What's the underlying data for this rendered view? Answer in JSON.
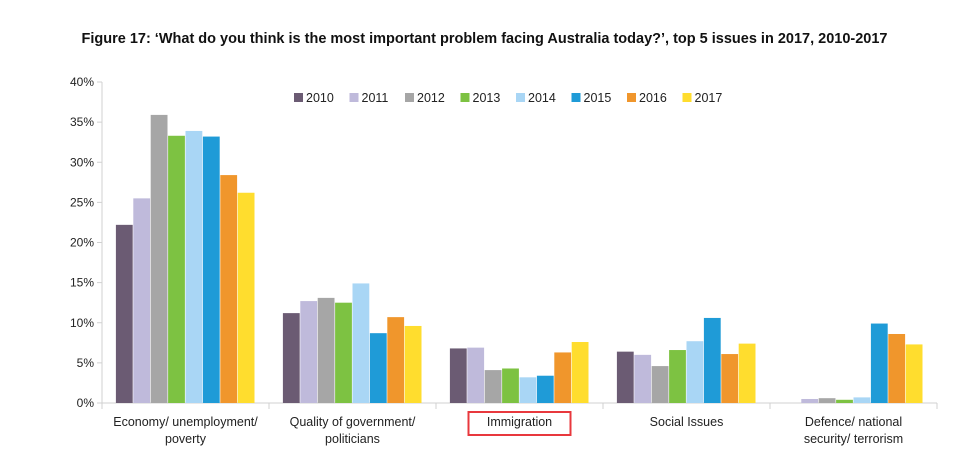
{
  "chart_data": {
    "type": "bar",
    "title": "Figure 17: ‘What do you think is the most important problem facing Australia today?’, top 5 issues in 2017, 2010-2017",
    "xlabel": "",
    "ylabel": "",
    "ylim": [
      0,
      40
    ],
    "yticks": [
      "0%",
      "5%",
      "10%",
      "15%",
      "20%",
      "25%",
      "30%",
      "35%",
      "40%"
    ],
    "grid": false,
    "legend_position": "top-center",
    "highlighted_category": "Immigration",
    "categories": [
      [
        "Economy/ unemployment/",
        "poverty"
      ],
      [
        "Quality of government/",
        "politicians"
      ],
      [
        "Immigration"
      ],
      [
        "Social Issues"
      ],
      [
        "Defence/ national",
        "security/ terrorism"
      ]
    ],
    "series": [
      {
        "name": "2010",
        "color": "#6b5b73",
        "values": [
          22.2,
          11.2,
          6.8,
          6.4,
          0
        ]
      },
      {
        "name": "2011",
        "color": "#bfbadb",
        "values": [
          25.5,
          12.7,
          6.9,
          6.0,
          0.5
        ]
      },
      {
        "name": "2012",
        "color": "#a6a6a6",
        "values": [
          35.9,
          13.1,
          4.1,
          4.6,
          0.6
        ]
      },
      {
        "name": "2013",
        "color": "#7dc242",
        "values": [
          33.3,
          12.5,
          4.3,
          6.6,
          0.4
        ]
      },
      {
        "name": "2014",
        "color": "#a9d6f5",
        "values": [
          33.9,
          14.9,
          3.2,
          7.7,
          0.7
        ]
      },
      {
        "name": "2015",
        "color": "#1f9bd7",
        "values": [
          33.2,
          8.7,
          3.4,
          10.6,
          9.9
        ]
      },
      {
        "name": "2016",
        "color": "#f0962c",
        "values": [
          28.4,
          10.7,
          6.3,
          6.1,
          8.6
        ]
      },
      {
        "name": "2017",
        "color": "#ffdd2e",
        "values": [
          26.2,
          9.6,
          7.6,
          7.4,
          7.3
        ]
      }
    ],
    "highlight_color": "#e8383d",
    "axis_color": "#d0d0d0"
  }
}
